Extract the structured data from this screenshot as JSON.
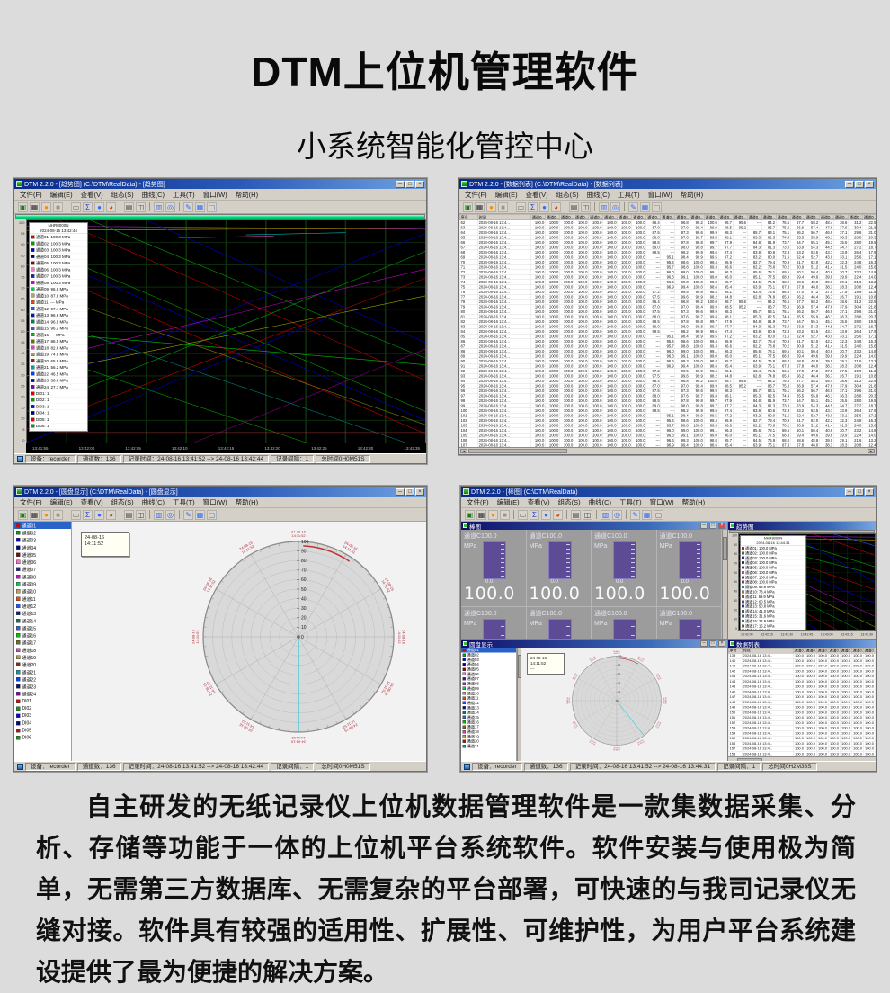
{
  "page": {
    "title": "DTM上位机管理软件",
    "subtitle": "小系统智能化管控中心",
    "description": "自主研发的无纸记录仪上位机数据管理软件是一款集数据采集、分析、存储等功能于一体的上位机平台系统软件。软件安装与使用极为简单，无需第三方数据库、无需复杂的平台部署，可快速的与我司记录仪无缝对接。软件具有较强的适用性、扩展性、可维护性，为用户平台系统建设提供了最为便捷的解决方案。",
    "bg_color": "#dcdcdc"
  },
  "chrome": {
    "menu": [
      "文件(F)",
      "编辑(E)",
      "查看(V)",
      "组态(S)",
      "曲线(C)",
      "工具(T)",
      "窗口(W)",
      "帮助(H)"
    ],
    "window_buttons": [
      "─",
      "□",
      "×"
    ],
    "toolbar": [
      {
        "name": "open-folder-icon",
        "glyph": "▣",
        "color": "#1f7a1f"
      },
      {
        "name": "save-icon",
        "glyph": "▦",
        "color": "#303030"
      },
      {
        "name": "record-icon",
        "glyph": "●",
        "color": "#ff8a00"
      },
      {
        "name": "stop-icon",
        "glyph": "■",
        "color": "#9a968e"
      },
      {
        "sep": true
      },
      {
        "name": "list-icon",
        "glyph": "▭",
        "color": "#606060"
      },
      {
        "name": "sum-icon",
        "glyph": "Σ",
        "color": "#2244cc"
      },
      {
        "name": "point-icon",
        "glyph": "●",
        "color": "#2d6cff"
      },
      {
        "name": "palette-icon",
        "glyph": "◕",
        "color": "#d04a20"
      },
      {
        "sep": true
      },
      {
        "name": "print-icon",
        "glyph": "▤",
        "color": "#404040"
      },
      {
        "name": "print-preview-icon",
        "glyph": "◫",
        "color": "#404040"
      },
      {
        "sep": true
      },
      {
        "name": "copy-icon",
        "glyph": "▥",
        "color": "#2d6cff"
      },
      {
        "name": "zoom-icon",
        "glyph": "◎",
        "color": "#2d6cff"
      },
      {
        "sep": true
      },
      {
        "name": "pen-icon",
        "glyph": "✎",
        "color": "#2d6cff"
      },
      {
        "name": "disk-icon",
        "glyph": "▦",
        "color": "#2d6cff"
      },
      {
        "name": "window-icon",
        "glyph": "▢",
        "color": "#2d6cff"
      }
    ]
  },
  "palette": {
    "channels": [
      "#e00000",
      "#00a000",
      "#0000e0",
      "#000090",
      "#900000",
      "#ff70c8",
      "#2020b0",
      "#e000e0",
      "#00d050",
      "#c0a060",
      "#ff4000",
      "#2050ff",
      "#002090",
      "#008050",
      "#3060c0",
      "#00c000",
      "#707000",
      "#e040c0",
      "#b0a040",
      "#a02000",
      "#00a0a0",
      "#0040ff",
      "#001080",
      "#8000c0"
    ],
    "di": [
      "#e00000",
      "#00a000",
      "#0000e0",
      "#000090",
      "#e00000",
      "#00a000"
    ]
  },
  "win_trend": {
    "title": "DTM 2.2.0 - [趋势图] (C:\\DTM\\RealData) - [趋势图]",
    "device": "NHR8000N",
    "datetime": "2024-08-16 13:42:44",
    "legend": [
      "通道01: 100.3 MPa",
      "通道02: 100.3 MPa",
      "通道03: 100.3 MPa",
      "通道04: 100.3 MPa",
      "通道05: 100.3 MPa",
      "通道06: 100.3 MPa",
      "通道07: 100.3 MPa",
      "通道08: 100.3 MPa",
      "通道09: 96.6 MPa",
      "通道10: 87.8 MPa",
      "通道11: --- MPa",
      "通道12: 97.4 MPa",
      "通道13: 96.6 MPa",
      "通道14: 96.9 MPa",
      "通道15: 96.2 MPa",
      "通道16: --- MPa",
      "通道17: 86.5 MPa",
      "通道18: 82.8 MPa",
      "通道19: 74.8 MPa",
      "通道20: 65.8 MPa",
      "通道21: 56.2 MPa",
      "通道22: 46.5 MPa",
      "通道23: 36.8 MPa",
      "通道24: 27.7 MPa",
      "DI01: 1",
      "DI02: 1",
      "DI03: 1",
      "DI04: 1",
      "DI05: 1",
      "DI06: 1"
    ],
    "y_ticks": [
      "100",
      "95",
      "90",
      "85",
      "80",
      "75",
      "70",
      "65",
      "60",
      "55",
      "50",
      "45",
      "40",
      "35",
      "30",
      "25",
      "20",
      "15",
      "10",
      "5",
      "0"
    ],
    "x_ticks": [
      "13:41:55",
      "13:42:00",
      "13:42:05",
      "13:42:10",
      "13:42:15",
      "13:42:20",
      "13:42:25",
      "13:42:30",
      "13:42:35"
    ],
    "status": [
      "设备：recorder",
      "通道数：136",
      "记录时间：24-08-16 13:41:52 --> 24-08-16 13:42:44",
      "记录间隔：1",
      "总时间0H0M51S"
    ],
    "chart_data": {
      "type": "line",
      "lines": [
        {
          "c": "#b030d0",
          "p": "0,2.5 100,4"
        },
        {
          "c": "#c8a000",
          "p": "0,4.5 100,3.5"
        },
        {
          "c": "#00b0b0",
          "p": "55,6.5 80,5.5"
        },
        {
          "c": "#d040a0",
          "p": "38,8 62,7"
        },
        {
          "c": "#00a000",
          "p": "0,10 100,86"
        },
        {
          "c": "#c00000",
          "p": "0,20 100,96"
        },
        {
          "c": "#0000cc",
          "p": "0,13 100,90"
        },
        {
          "c": "#808000",
          "p": "0,30 100,92"
        },
        {
          "c": "#00a000",
          "p": "16,0 100,62"
        },
        {
          "c": "#c00000",
          "p": "8,0 100,72"
        },
        {
          "c": "#0000cc",
          "p": "30,0 100,55"
        },
        {
          "c": "#008080",
          "p": "0,42 95,100"
        },
        {
          "c": "#00a000",
          "p": "0,58 70,100"
        },
        {
          "c": "#800080",
          "p": "42,100 100,58"
        },
        {
          "c": "#00a000",
          "p": "0,86 100,14"
        },
        {
          "c": "#c00000",
          "p": "0,94 100,26"
        },
        {
          "c": "#0000cc",
          "p": "0,76 100,6"
        },
        {
          "c": "#0000cc",
          "p": "0,100 78,42"
        },
        {
          "c": "#c000c0",
          "p": "0,64 100,22"
        },
        {
          "c": "#a0a000",
          "p": "0,70 100,34"
        },
        {
          "c": "#00c000",
          "p": "0,50 100,65"
        },
        {
          "c": "#c00000",
          "p": "7,76 7,95.5"
        },
        {
          "c": "#a03030",
          "p": "7,95.5 100,95.5"
        },
        {
          "c": "#00a000",
          "p": "0,92 100,92"
        }
      ]
    }
  },
  "win_table": {
    "title": "DTM 2.2.0 - [数据列表] (C:\\DTM\\RealData) - [数据列表]",
    "header_seq": "序号",
    "header_time": "时间",
    "header_channel": "通道0...",
    "channel_cols": 24,
    "row_start": 62,
    "row_count": 49,
    "time_cell": "2024-08-16 13:4...",
    "lead_cols": 8,
    "lead_value": "100.0",
    "tails": [
      [
        "86.4",
        "---",
        "96.8",
        "99.2",
        "100.0",
        "98.7",
        "95.6",
        "---",
        "84.2",
        "76.5",
        "67.7",
        "58.2",
        "48.4",
        "38.6",
        "31.2",
        "22.5"
      ],
      [
        "87.0",
        "---",
        "97.0",
        "99.4",
        "99.9",
        "98.5",
        "95.2",
        "---",
        "83.7",
        "75.8",
        "66.9",
        "57.4",
        "47.6",
        "37.9",
        "30.4",
        "21.8"
      ],
      [
        "87.5",
        "---",
        "97.3",
        "99.6",
        "99.9",
        "98.3",
        "---",
        "85.7",
        "83.1",
        "75.1",
        "66.2",
        "56.7",
        "46.9",
        "37.1",
        "29.6",
        "21.0"
      ],
      [
        "88.0",
        "---",
        "97.6",
        "99.7",
        "99.8",
        "98.1",
        "---",
        "85.3",
        "82.5",
        "74.4",
        "65.5",
        "55.9",
        "46.1",
        "36.3",
        "28.8",
        "20.3"
      ],
      [
        "88.5",
        "---",
        "97.8",
        "99.8",
        "99.7",
        "97.9",
        "---",
        "84.8",
        "81.9",
        "73.7",
        "64.7",
        "55.1",
        "45.3",
        "35.5",
        "28.0",
        "19.5"
      ],
      [
        "89.0",
        "---",
        "98.0",
        "99.8",
        "99.7",
        "97.7",
        "---",
        "84.3",
        "81.3",
        "73.0",
        "63.9",
        "54.3",
        "44.5",
        "34.7",
        "27.2",
        "18.7"
      ],
      [
        "89.5",
        "---",
        "98.2",
        "99.9",
        "99.6",
        "97.4",
        "---",
        "83.8",
        "80.6",
        "72.3",
        "63.2",
        "53.5",
        "43.7",
        "33.9",
        "26.4",
        "17.9"
      ],
      [
        "---",
        "95.1",
        "98.4",
        "99.9",
        "99.5",
        "97.2",
        "---",
        "83.2",
        "80.0",
        "71.6",
        "62.4",
        "52.7",
        "43.0",
        "33.1",
        "25.6",
        "17.1"
      ],
      [
        "---",
        "95.4",
        "98.6",
        "100.0",
        "99.4",
        "96.9",
        "---",
        "82.7",
        "79.4",
        "70.9",
        "61.7",
        "52.0",
        "42.2",
        "32.3",
        "24.8",
        "16.3"
      ],
      [
        "---",
        "95.7",
        "98.8",
        "100.0",
        "99.3",
        "96.6",
        "---",
        "82.2",
        "78.8",
        "70.2",
        "60.9",
        "51.2",
        "41.4",
        "31.5",
        "24.0",
        "15.6"
      ],
      [
        "---",
        "96.0",
        "99.0",
        "100.0",
        "99.1",
        "96.3",
        "---",
        "85.6",
        "78.1",
        "69.5",
        "60.1",
        "50.4",
        "40.6",
        "30.7",
        "23.2",
        "14.8"
      ],
      [
        "---",
        "96.3",
        "99.1",
        "100.0",
        "99.0",
        "96.0",
        "---",
        "85.1",
        "77.5",
        "68.8",
        "59.4",
        "49.6",
        "39.8",
        "29.9",
        "22.4",
        "14.0"
      ],
      [
        "---",
        "96.6",
        "99.3",
        "100.0",
        "98.8",
        "95.7",
        "---",
        "84.5",
        "76.8",
        "68.0",
        "58.6",
        "48.8",
        "39.0",
        "29.1",
        "21.6",
        "13.2"
      ],
      [
        "---",
        "96.9",
        "99.4",
        "100.0",
        "98.6",
        "95.4",
        "---",
        "63.9",
        "76.1",
        "67.3",
        "57.8",
        "48.0",
        "38.3",
        "28.3",
        "20.8",
        "12.4"
      ],
      [
        "97.2",
        "---",
        "99.5",
        "99.9",
        "98.4",
        "95.1",
        "---",
        "63.4",
        "75.5",
        "66.6",
        "57.0",
        "47.2",
        "37.5",
        "27.5",
        "19.9",
        "11.6"
      ],
      [
        "97.5",
        "---",
        "99.6",
        "99.9",
        "98.2",
        "94.8",
        "---",
        "62.8",
        "74.8",
        "65.9",
        "56.2",
        "46.4",
        "36.7",
        "26.7",
        "19.1",
        "10.8"
      ]
    ]
  },
  "win_polar": {
    "title": "DTM 2.2.0 - [圆盘显示] (C:\\DTM\\RealData) - [圆盘显示]",
    "channels": [
      "通道01",
      "通道02",
      "通道03",
      "通道04",
      "通道05",
      "通道06",
      "通道07",
      "通道08",
      "通道09",
      "通道10",
      "通道11",
      "通道12",
      "通道13",
      "通道14",
      "通道15",
      "通道16",
      "通道17",
      "通道18",
      "通道19",
      "通道20",
      "通道21",
      "通道22",
      "通道23",
      "通道24",
      "DI01",
      "DI02",
      "DI03",
      "DI04",
      "DI05",
      "DI06"
    ],
    "selected_index": 0,
    "tooltip": [
      "24-08-16",
      "14:11:52",
      "---"
    ],
    "scale": [
      100,
      90,
      80,
      70,
      60,
      50,
      40,
      30,
      20,
      10,
      0
    ],
    "peri": [
      "24-08-16",
      "14:11:52"
    ],
    "needle_deg": 180,
    "arc": {
      "from": 3,
      "to": 34
    },
    "status": [
      "设备：recorder",
      "通道数：136",
      "记录时间：24-08-16 13:41:52 --> 24-08-16 13:42:44",
      "记录间隔：1",
      "总时间0H0M51S"
    ]
  },
  "win_mdi": {
    "title": "DTM 2.2.0 - [棒图] (C:\\DTM\\RealData)",
    "status": [
      "设备：recorder",
      "通道数：136",
      "记录时间：24-08-16 13:41:52 --> 24-08-16 13:44:31",
      "记录间隔：1",
      "总时间0H2M38S"
    ],
    "panes": {
      "bar": {
        "title": "棒图",
        "count": 8,
        "cell": {
          "channel": "通道C",
          "range": "100.0",
          "unit": "MPa",
          "min": "0.0",
          "value": "100.0"
        }
      },
      "trend": {
        "title": "趋势图",
        "device": "NHR8000N",
        "datetime": "2024-08-16 13:44:31",
        "legend": [
          "通道01: 100.0 MPa",
          "通道02: 100.0 MPa",
          "通道03: 100.0 MPa",
          "通道04: 100.0 MPa",
          "通道05: 100.0 MPa",
          "通道06: 100.0 MPa",
          "通道07: 100.0 MPa",
          "通道08: 100.0 MPa",
          "通道09: 85.9 MPa",
          "通道10: 78.4 MPa",
          "通道11: 69.9 MPa",
          "通道12: 60.5 MPa",
          "通道13: 50.8 MPa",
          "通道14: 41.0 MPa",
          "通道15: 31.6 MPa",
          "通道16: 22.9 MPa",
          "通道17: 15.2 MPa",
          "通道18: 8.9 MPa",
          "通道19: 4.1 MPa"
        ],
        "y_ticks": [
          "100",
          "90",
          "80",
          "70",
          "60",
          "50",
          "40",
          "30",
          "20",
          "10",
          "0"
        ],
        "x_ticks": [
          "13:42:00",
          "13:42:15",
          "13:42:30",
          "13:42:45",
          "13:43:00",
          "13:43:15",
          "13:43:30"
        ],
        "chart_data": {
          "type": "line",
          "lines": [
            {
              "c": "#9030c0",
              "p": "0,2 100,3"
            },
            {
              "c": "#c8a000",
              "p": "0,3.5 100,6"
            },
            {
              "c": "#00a000",
              "p": "0,5 10,9 16,4 24,12"
            },
            {
              "c": "#00a000",
              "p": "0,6 100,42"
            },
            {
              "c": "#c00000",
              "p": "0,10 100,58"
            },
            {
              "c": "#0000cc",
              "p": "0,15 100,72"
            },
            {
              "c": "#c000c0",
              "p": "0,21 100,86"
            },
            {
              "c": "#808000",
              "p": "0,28 100,97"
            },
            {
              "c": "#008000",
              "p": "0,36 88,100"
            },
            {
              "c": "#c00000",
              "p": "0,46 72,100"
            },
            {
              "c": "#0000cc",
              "p": "0,56 58,100"
            },
            {
              "c": "#008080",
              "p": "0,66 44,100"
            },
            {
              "c": "#800080",
              "p": "0,76 31,100"
            },
            {
              "c": "#a03030",
              "p": "0,86 19,100"
            },
            {
              "c": "#00a000",
              "p": "22,0 100,34"
            },
            {
              "c": "#0000cc",
              "p": "38,0 100,50"
            },
            {
              "c": "#c00000",
              "p": "55,0 100,22"
            },
            {
              "c": "#2050ff",
              "p": "70,0 100,12"
            }
          ]
        }
      },
      "polar": {
        "title": "圆盘显示",
        "channels": [
          "通道01",
          "通道02",
          "通道03",
          "通道04",
          "通道05",
          "通道06",
          "通道07",
          "通道08",
          "通道09",
          "通道10",
          "通道11",
          "通道12",
          "通道13",
          "通道14",
          "通道15",
          "通道16",
          "通道17",
          "通道18",
          "通道19",
          "通道20",
          "通道21"
        ],
        "selected_index": 0,
        "tooltip": [
          "24-08-16",
          "14:11:52",
          "---"
        ],
        "scale": [
          100,
          80,
          60,
          40,
          20,
          0
        ],
        "peri": [
          "24-08-16",
          "14:11:52"
        ],
        "needle_deg": 142,
        "arc": {
          "from": 2,
          "to": 30
        }
      },
      "table": {
        "title": "数据列表",
        "header_seq": "序号",
        "header_time": "时间",
        "header_channel": "通道0...",
        "channel_cols": 7,
        "row_start": 139,
        "row_count": 21,
        "time_cell": "2024-08-16 13:4...",
        "value": "100.0"
      }
    }
  }
}
